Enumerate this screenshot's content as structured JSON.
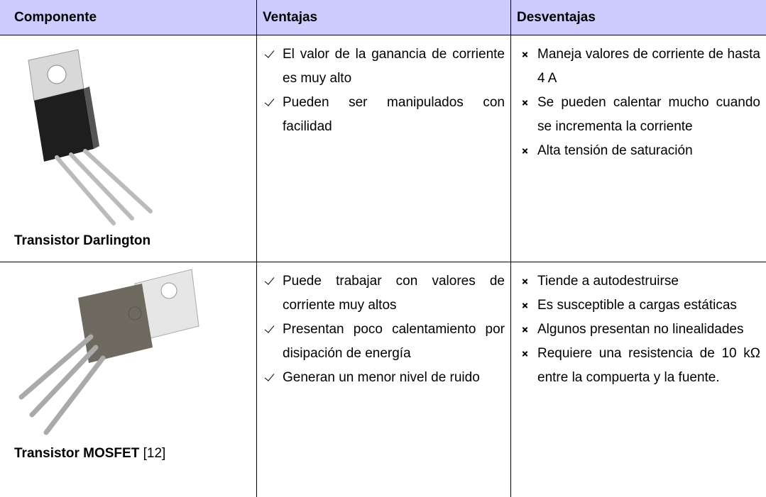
{
  "table": {
    "header": [
      "Componente",
      "Ventajas",
      "Desventajas"
    ],
    "rows": [
      {
        "component": "Transistor Darlington",
        "advantages": [
          "El valor de la ganancia de corriente es muy alto",
          "Pueden ser manipulados con facilidad"
        ],
        "disadvantages": [
          "Maneja valores de corriente de hasta 4 A",
          "Se pueden calentar mucho cuando se incrementa la corriente",
          "Alta tensión de saturación"
        ]
      },
      {
        "component": "Transistor MOSFET",
        "reference": "[12]",
        "advantages": [
          "Puede trabajar con valores de corriente muy altos",
          "Presentan poco calentamiento por disipación de energía",
          "Generan un menor nivel de ruido"
        ],
        "disadvantages": [
          "Tiende a autodestruirse",
          "Es susceptible a cargas estáticas",
          "Algunos presentan no linealidades",
          "Requiere una resistencia de 10 kΩ entre la compuerta y la fuente."
        ]
      }
    ]
  }
}
